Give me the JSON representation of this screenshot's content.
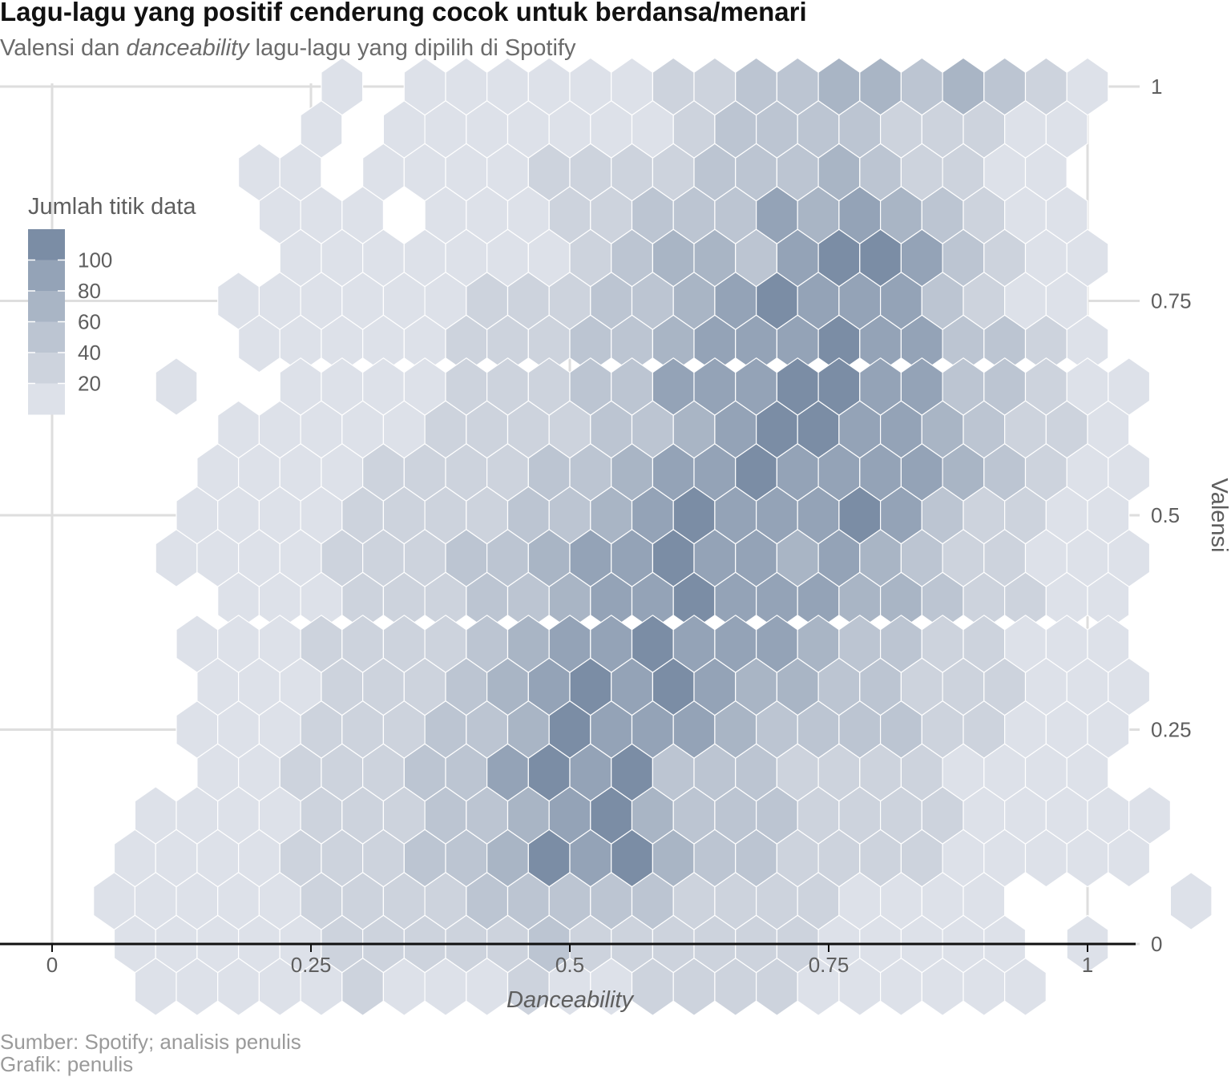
{
  "title": "Lagu-lagu yang positif cenderung cocok untuk berdansa/menari",
  "subtitle": {
    "before": "Valensi dan ",
    "emphasis": "danceability",
    "after": " lagu-lagu yang dipilih di Spotify"
  },
  "caption": {
    "line1": "Sumber: Spotify; analisis penulis",
    "line2": "Grafik: penulis"
  },
  "chart_data": {
    "type": "heatmap",
    "subtype": "hexbin",
    "xlabel": "Danceability",
    "ylabel": "Valensi",
    "xlim": [
      0,
      1
    ],
    "ylim": [
      0,
      1
    ],
    "x_ticks": [
      0,
      0.25,
      0.5,
      0.75,
      1
    ],
    "x_tick_labels": [
      "0",
      "0.25",
      "0.5",
      "0.75",
      "1"
    ],
    "y_ticks": [
      0,
      0.25,
      0.5,
      0.75,
      1
    ],
    "y_tick_labels": [
      "0",
      "0.25",
      "0.5",
      "0.75",
      "1"
    ],
    "y_axis_side": "right",
    "grid": true,
    "legend": {
      "title": "Jumlah titik data",
      "placement": "top-left",
      "breaks": [
        100,
        80,
        60,
        40,
        20
      ],
      "labels": [
        "100",
        "80",
        "60",
        "40",
        "20"
      ],
      "colors": [
        "#7b8da5",
        "#94a3b7",
        "#a9b5c5",
        "#bcc5d2",
        "#cdd3dd",
        "#dde1e9"
      ]
    },
    "hex_bin": {
      "dx": 0.04,
      "dy": 0.05
    },
    "rows": [
      {
        "y": 1.0,
        "x_start": 0.28,
        "values": [
          8,
          0,
          5,
          9,
          10,
          12,
          8,
          15,
          25,
          40,
          60,
          45,
          70,
          75,
          55,
          65,
          45,
          25,
          10
        ]
      },
      {
        "y": 0.95,
        "x_start": 0.26,
        "values": [
          10,
          0,
          8,
          15,
          20,
          18,
          12,
          15,
          20,
          30,
          45,
          55,
          60,
          50,
          35,
          30,
          25,
          15,
          10
        ]
      },
      {
        "y": 0.9,
        "x_start": 0.2,
        "values": [
          10,
          10,
          0,
          12,
          14,
          18,
          20,
          30,
          25,
          40,
          35,
          55,
          45,
          60,
          65,
          55,
          40,
          25,
          15,
          10
        ]
      },
      {
        "y": 0.85,
        "x_start": 0.22,
        "values": [
          5,
          8,
          12,
          0,
          18,
          20,
          14,
          28,
          30,
          42,
          55,
          60,
          90,
          75,
          95,
          80,
          60,
          30,
          20,
          10
        ]
      },
      {
        "y": 0.8,
        "x_start": 0.24,
        "values": [
          8,
          10,
          15,
          18,
          16,
          12,
          16,
          26,
          45,
          65,
          70,
          55,
          95,
          105,
          100,
          90,
          55,
          40,
          20,
          10
        ]
      },
      {
        "y": 0.75,
        "x_start": 0.18,
        "values": [
          12,
          10,
          12,
          15,
          18,
          20,
          22,
          30,
          28,
          45,
          60,
          72,
          85,
          105,
          95,
          90,
          95,
          60,
          35,
          20,
          10
        ]
      },
      {
        "y": 0.7,
        "x_start": 0.2,
        "values": [
          10,
          12,
          15,
          18,
          20,
          22,
          25,
          35,
          45,
          50,
          70,
          90,
          90,
          95,
          100,
          90,
          95,
          60,
          45,
          30,
          15
        ]
      },
      {
        "y": 0.65,
        "x_start": 0.12,
        "values": [
          8,
          0,
          0,
          10,
          12,
          18,
          20,
          22,
          25,
          30,
          45,
          60,
          85,
          95,
          90,
          100,
          105,
          90,
          95,
          60,
          45,
          30,
          20,
          10
        ]
      },
      {
        "y": 0.6,
        "x_start": 0.18,
        "values": [
          10,
          12,
          15,
          18,
          20,
          22,
          25,
          30,
          40,
          55,
          60,
          80,
          90,
          105,
          100,
          95,
          85,
          70,
          55,
          40,
          25,
          15
        ]
      },
      {
        "y": 0.55,
        "x_start": 0.16,
        "values": [
          12,
          15,
          18,
          20,
          22,
          25,
          30,
          40,
          50,
          55,
          70,
          90,
          95,
          100,
          95,
          90,
          90,
          90,
          65,
          50,
          35,
          20,
          10
        ]
      },
      {
        "y": 0.5,
        "x_start": 0.14,
        "values": [
          10,
          12,
          15,
          20,
          22,
          25,
          30,
          38,
          50,
          60,
          80,
          95,
          100,
          95,
          90,
          95,
          100,
          85,
          55,
          40,
          30,
          20,
          10
        ]
      },
      {
        "y": 0.45,
        "x_start": 0.12,
        "values": [
          10,
          12,
          15,
          18,
          22,
          28,
          35,
          45,
          55,
          70,
          85,
          95,
          100,
          95,
          90,
          80,
          95,
          80,
          50,
          40,
          30,
          20,
          15,
          10
        ]
      },
      {
        "y": 0.4,
        "x_start": 0.18,
        "values": [
          10,
          12,
          18,
          22,
          28,
          35,
          45,
          55,
          75,
          90,
          95,
          100,
          95,
          90,
          85,
          80,
          70,
          55,
          40,
          30,
          20,
          15
        ]
      },
      {
        "y": 0.35,
        "x_start": 0.14,
        "values": [
          12,
          15,
          18,
          22,
          28,
          32,
          40,
          55,
          70,
          85,
          95,
          100,
          90,
          90,
          85,
          75,
          60,
          50,
          40,
          30,
          20,
          15,
          10
        ]
      },
      {
        "y": 0.3,
        "x_start": 0.16,
        "values": [
          12,
          15,
          20,
          25,
          30,
          38,
          50,
          65,
          85,
          100,
          95,
          105,
          90,
          80,
          70,
          60,
          50,
          40,
          30,
          25,
          20,
          15,
          10
        ]
      },
      {
        "y": 0.25,
        "x_start": 0.14,
        "values": [
          10,
          15,
          18,
          22,
          28,
          35,
          45,
          60,
          80,
          100,
          95,
          90,
          85,
          70,
          60,
          50,
          45,
          55,
          40,
          30,
          20,
          15,
          10
        ]
      },
      {
        "y": 0.2,
        "x_start": 0.16,
        "values": [
          15,
          18,
          22,
          28,
          35,
          45,
          60,
          85,
          100,
          95,
          100,
          60,
          55,
          45,
          40,
          35,
          30,
          25,
          20,
          15,
          12,
          10
        ]
      },
      {
        "y": 0.15,
        "x_start": 0.1,
        "values": [
          10,
          12,
          15,
          18,
          22,
          28,
          35,
          45,
          55,
          70,
          90,
          105,
          75,
          60,
          50,
          45,
          40,
          35,
          30,
          25,
          20,
          15,
          12,
          10,
          10
        ]
      },
      {
        "y": 0.1,
        "x_start": 0.08,
        "values": [
          10,
          12,
          15,
          18,
          22,
          28,
          35,
          45,
          60,
          80,
          105,
          90,
          100,
          70,
          55,
          45,
          40,
          35,
          30,
          25,
          20,
          15,
          12,
          10,
          10
        ]
      },
      {
        "y": 0.05,
        "x_start": 0.06,
        "values": [
          10,
          12,
          15,
          18,
          20,
          25,
          30,
          35,
          40,
          50,
          60,
          55,
          50,
          45,
          40,
          35,
          30,
          25,
          20,
          15,
          12,
          10,
          0,
          0,
          0,
          0,
          10
        ]
      },
      {
        "y": 0.0,
        "x_start": 0.08,
        "values": [
          10,
          12,
          15,
          18,
          20,
          22,
          25,
          28,
          35,
          40,
          45,
          30,
          35,
          28,
          35,
          30,
          25,
          20,
          15,
          12,
          10,
          10,
          0,
          12
        ]
      },
      {
        "y": -0.05,
        "x_start": 0.1,
        "values": [
          10,
          12,
          15,
          18,
          20,
          22,
          15,
          18,
          20,
          30,
          15,
          18,
          25,
          30,
          35,
          25,
          20,
          15,
          12,
          10,
          10,
          10
        ]
      }
    ]
  }
}
